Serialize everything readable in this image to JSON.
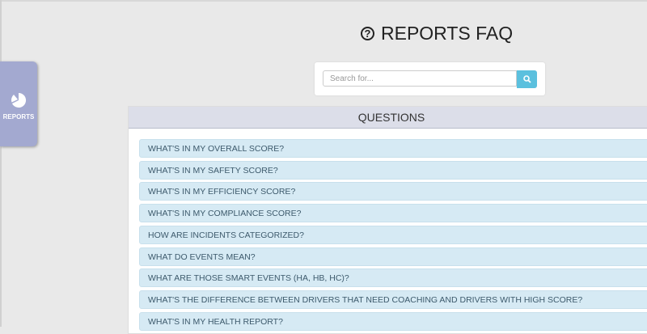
{
  "sidebar": {
    "reports_label": "REPORTS",
    "icon": "pie-chart-icon"
  },
  "header": {
    "title": "REPORTS FAQ",
    "icon": "question-circle-icon"
  },
  "search": {
    "placeholder": "Search for...",
    "value": "",
    "button_icon": "search-icon",
    "button_color": "#5bc0de"
  },
  "questions": {
    "heading": "QUESTIONS",
    "items": [
      "WHAT'S IN MY OVERALL SCORE?",
      "WHAT'S IN MY SAFETY SCORE?",
      "WHAT'S IN MY EFFICIENCY SCORE?",
      "WHAT'S IN MY COMPLIANCE SCORE?",
      "HOW ARE INCIDENTS CATEGORIZED?",
      "WHAT DO EVENTS MEAN?",
      "WHAT ARE THOSE SMART EVENTS (HA, HB, HC)?",
      "WHAT'S THE DIFFERENCE BETWEEN DRIVERS THAT NEED COACHING AND DRIVERS WITH HIGH SCORE?",
      "WHAT'S IN MY HEALTH REPORT?"
    ]
  }
}
